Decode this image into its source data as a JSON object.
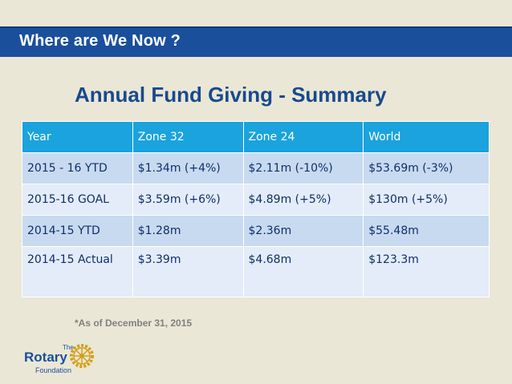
{
  "header": {
    "title": "Where are We Now ?"
  },
  "subtitle": "Annual Fund Giving - Summary",
  "table": {
    "columns": [
      "Year",
      "Zone 32",
      "Zone 24",
      "World"
    ],
    "rows": [
      [
        "2015 - 16 YTD",
        "$1.34m  (+4%)",
        "$2.11m (-10%)",
        "$53.69m (-3%)"
      ],
      [
        "2015-16 GOAL",
        "$3.59m (+6%)",
        "$4.89m (+5%)",
        "$130m (+5%)"
      ],
      [
        "2014-15 YTD",
        "$1.28m",
        "$2.36m",
        "$55.48m"
      ],
      [
        "2014-15 Actual",
        "$3.39m",
        "$4.68m",
        "$123.3m"
      ]
    ]
  },
  "footnote": "*As of December 31, 2015",
  "logo": {
    "the": "The",
    "rotary": "Rotary",
    "foundation": "Foundation",
    "icon": "rotary-wheel-icon"
  },
  "colors": {
    "header_band": "#1a4f9c",
    "table_header": "#1aa3dd",
    "row_dark": "#c8daf0",
    "row_light": "#e3ecf8",
    "subtitle_text": "#174a8e",
    "wheel_gold": "#d4a017"
  }
}
